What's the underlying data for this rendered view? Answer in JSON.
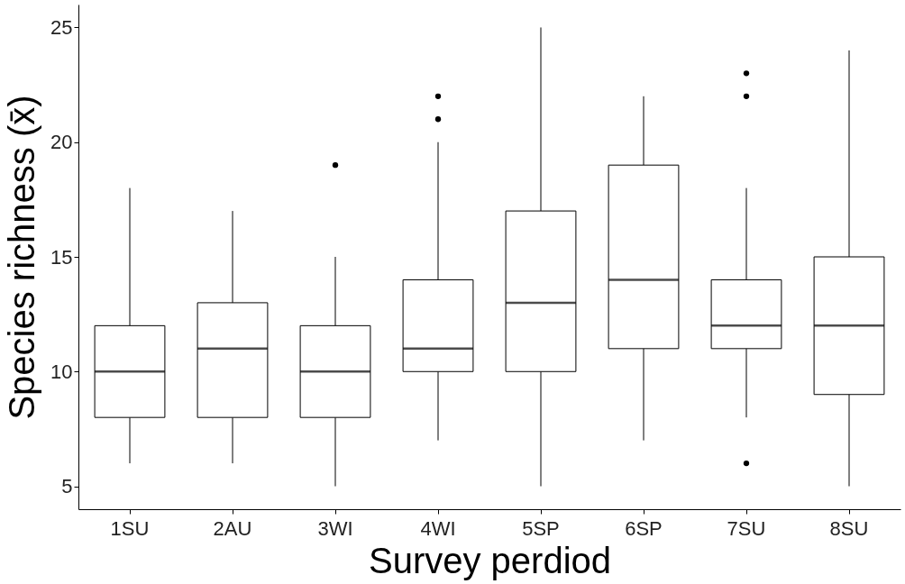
{
  "chart_data": {
    "type": "box",
    "xlabel": "Survey perdiod",
    "ylabel": "Species richness (x̄)",
    "categories": [
      "1SU",
      "2AU",
      "3WI",
      "4WI",
      "5SP",
      "6SP",
      "7SU",
      "8SU"
    ],
    "ylim": [
      4,
      26
    ],
    "yticks": [
      5,
      10,
      15,
      20,
      25
    ],
    "boxes": [
      {
        "low": 6,
        "q1": 8,
        "median": 10,
        "q3": 12,
        "high": 18
      },
      {
        "low": 6,
        "q1": 8,
        "median": 11,
        "q3": 13,
        "high": 17
      },
      {
        "low": 5,
        "q1": 8,
        "median": 10,
        "q3": 12,
        "high": 15,
        "outliers": [
          19
        ]
      },
      {
        "low": 7,
        "q1": 10,
        "median": 11,
        "q3": 14,
        "high": 20,
        "outliers": [
          21,
          22
        ]
      },
      {
        "low": 5,
        "q1": 10,
        "median": 13,
        "q3": 17,
        "high": 25
      },
      {
        "low": 7,
        "q1": 11,
        "median": 14,
        "q3": 19,
        "high": 22
      },
      {
        "low": 8,
        "q1": 11,
        "median": 12,
        "q3": 14,
        "high": 18,
        "outliers": [
          22,
          23,
          6
        ]
      },
      {
        "low": 5,
        "q1": 9,
        "median": 12,
        "q3": 15,
        "high": 24
      }
    ]
  }
}
